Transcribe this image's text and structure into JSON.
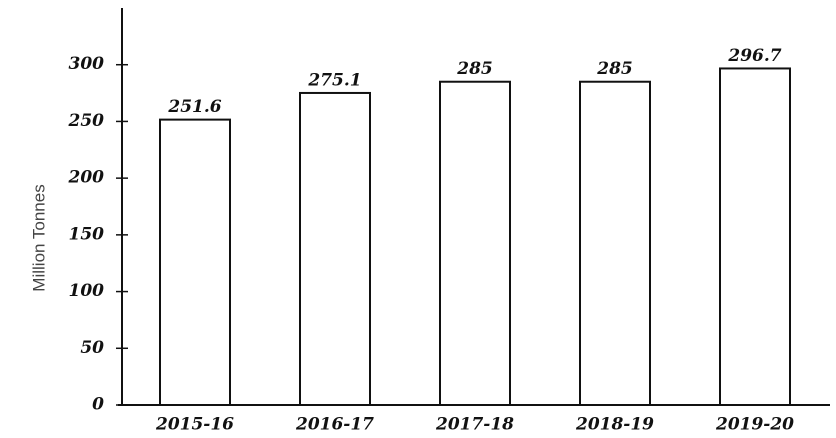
{
  "chart_data": {
    "type": "bar",
    "y_label": "Million Tonnes",
    "categories": [
      "2015-16",
      "2016-17",
      "2017-18",
      "2018-19",
      "2019-20"
    ],
    "values": [
      251.6,
      275.1,
      285,
      285,
      296.7
    ],
    "color": "#ffffff",
    "ylim": [
      0,
      350
    ],
    "yticks": [
      0,
      50,
      100,
      150,
      200,
      250,
      300
    ],
    "grid": false
  }
}
